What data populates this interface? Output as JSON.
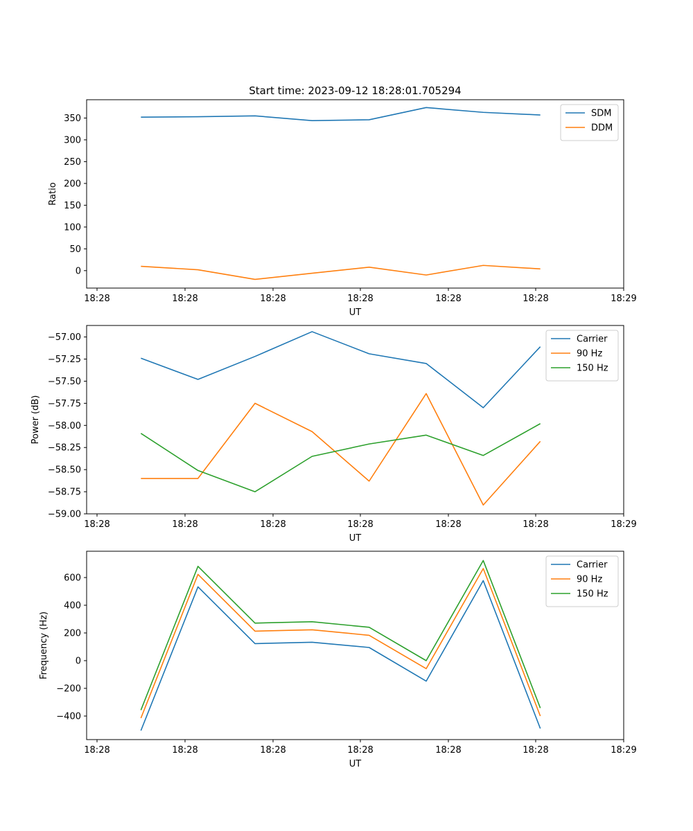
{
  "figure_title": "Start time: 2023-09-12 18:28:01.705294",
  "chart_data": [
    {
      "type": "line",
      "title": "Start time: 2023-09-12 18:28:01.705294",
      "xlabel": "UT",
      "ylabel": "Ratio",
      "xticks": [
        "18:28",
        "18:28",
        "18:28",
        "18:28",
        "18:28",
        "18:28",
        "18:29"
      ],
      "xlim": [
        0,
        6
      ],
      "ylim": [
        -40,
        392
      ],
      "yticks": [
        0,
        50,
        100,
        150,
        200,
        250,
        300,
        350
      ],
      "ytick_labels": [
        "0",
        "50",
        "100",
        "150",
        "200",
        "250",
        "300",
        "350"
      ],
      "x": [
        0.5,
        1.15,
        1.8,
        2.45,
        3.1,
        3.75,
        4.4,
        5.05
      ],
      "legend_position": "top-right",
      "series": [
        {
          "name": "SDM",
          "color": "#1f77b4",
          "values": [
            352,
            353,
            355,
            344,
            346,
            374,
            363,
            357
          ]
        },
        {
          "name": "DDM",
          "color": "#ff7f0e",
          "values": [
            10,
            2,
            -20,
            -6,
            8,
            -10,
            12,
            4
          ]
        }
      ]
    },
    {
      "type": "line",
      "title": "",
      "xlabel": "UT",
      "ylabel": "Power (dB)",
      "xticks": [
        "18:28",
        "18:28",
        "18:28",
        "18:28",
        "18:28",
        "18:28",
        "18:29"
      ],
      "xlim": [
        0,
        6
      ],
      "ylim": [
        -59.0,
        -56.87
      ],
      "yticks": [
        -59.0,
        -58.75,
        -58.5,
        -58.25,
        -58.0,
        -57.75,
        -57.5,
        -57.25,
        -57.0
      ],
      "ytick_labels": [
        "−59.00",
        "−58.75",
        "−58.50",
        "−58.25",
        "−58.00",
        "−57.75",
        "−57.50",
        "−57.25",
        "−57.00"
      ],
      "x": [
        0.5,
        1.15,
        1.8,
        2.45,
        3.1,
        3.75,
        4.4,
        5.05
      ],
      "legend_position": "top-right",
      "series": [
        {
          "name": "Carrier",
          "color": "#1f77b4",
          "values": [
            -57.24,
            -57.48,
            -57.22,
            -56.94,
            -57.19,
            -57.3,
            -57.8,
            -57.11
          ]
        },
        {
          "name": "90 Hz",
          "color": "#ff7f0e",
          "values": [
            -58.6,
            -58.6,
            -57.75,
            -58.07,
            -58.63,
            -57.64,
            -58.9,
            -58.18
          ]
        },
        {
          "name": "150 Hz",
          "color": "#2ca02c",
          "values": [
            -58.09,
            -58.51,
            -58.75,
            -58.35,
            -58.21,
            -58.11,
            -58.34,
            -57.98
          ]
        }
      ]
    },
    {
      "type": "line",
      "title": "",
      "xlabel": "UT",
      "ylabel": "Frequency (Hz)",
      "xticks": [
        "18:28",
        "18:28",
        "18:28",
        "18:28",
        "18:28",
        "18:28",
        "18:29"
      ],
      "xlim": [
        0,
        6
      ],
      "ylim": [
        -570,
        790
      ],
      "yticks": [
        -400,
        -200,
        0,
        200,
        400,
        600
      ],
      "ytick_labels": [
        "−400",
        "−200",
        "0",
        "200",
        "400",
        "600"
      ],
      "x": [
        0.5,
        1.15,
        1.8,
        2.45,
        3.1,
        3.75,
        4.4,
        5.05
      ],
      "legend_position": "top-right",
      "series": [
        {
          "name": "Carrier",
          "color": "#1f77b4",
          "values": [
            -505,
            533,
            123,
            133,
            95,
            -148,
            578,
            -490
          ]
        },
        {
          "name": "90 Hz",
          "color": "#ff7f0e",
          "values": [
            -415,
            623,
            213,
            223,
            183,
            -58,
            665,
            -400
          ]
        },
        {
          "name": "150 Hz",
          "color": "#2ca02c",
          "values": [
            -357,
            681,
            271,
            281,
            241,
            0,
            723,
            -342
          ]
        }
      ]
    }
  ]
}
